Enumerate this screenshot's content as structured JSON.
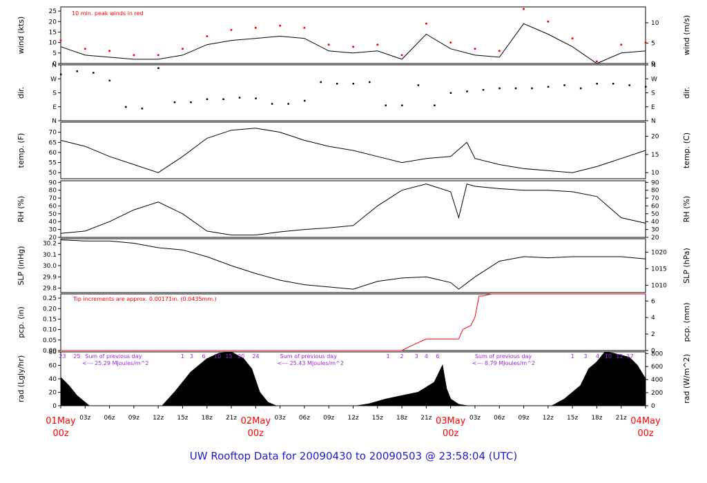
{
  "chart_data": [
    {
      "type": "line",
      "ylabel_left": "wind (kts)",
      "ylabel_right": "wind (m/s)",
      "ylim_left": [
        0,
        27
      ],
      "yticks_left": [
        "0",
        "5",
        "10",
        "15",
        "20",
        "25"
      ],
      "yticks_right": [
        "0",
        "5",
        "10"
      ],
      "annotation": "10 min. peak winds in red",
      "series": [
        {
          "color": "#000000",
          "x": [
            0,
            3,
            6,
            9,
            12,
            15,
            18,
            21,
            24,
            27,
            30,
            33,
            36,
            39,
            42,
            45,
            48,
            51,
            54,
            57,
            60,
            63,
            66,
            69,
            72
          ],
          "y": [
            8,
            4,
            3,
            2,
            2,
            4,
            9,
            11,
            12,
            13,
            12,
            6,
            5,
            6,
            2,
            14,
            7,
            4,
            3,
            19,
            14,
            8,
            0,
            5,
            6
          ]
        },
        {
          "color": "#ff0000",
          "x": [
            0,
            3,
            6,
            9,
            12,
            15,
            18,
            21,
            24,
            27,
            30,
            33,
            36,
            39,
            42,
            45,
            48,
            51,
            54,
            57,
            60,
            63,
            66,
            69,
            72
          ],
          "y": [
            11,
            7,
            6,
            4,
            4,
            7,
            13,
            16,
            17,
            18,
            17,
            9,
            8,
            9,
            4,
            19,
            10,
            7,
            6,
            26,
            20,
            12,
            1,
            9,
            10
          ]
        }
      ]
    },
    {
      "type": "scatter",
      "ylabel_left": "dir.",
      "ylabel_right": "dir.",
      "yticks_left": [
        "N",
        "E",
        "S",
        "W",
        "N"
      ],
      "yticks_right": [
        "N",
        "E",
        "S",
        "W",
        "N"
      ],
      "ylim": [
        0,
        360
      ],
      "x": [
        0,
        2,
        4,
        6,
        8,
        10,
        12,
        14,
        16,
        18,
        20,
        22,
        24,
        26,
        28,
        30,
        32,
        34,
        36,
        38,
        40,
        42,
        44,
        46,
        48,
        50,
        52,
        54,
        56,
        58,
        60,
        62,
        64,
        66,
        68,
        70,
        72
      ],
      "y": [
        300,
        320,
        310,
        260,
        90,
        80,
        340,
        120,
        120,
        140,
        140,
        150,
        145,
        110,
        110,
        130,
        250,
        240,
        240,
        250,
        100,
        100,
        230,
        100,
        180,
        190,
        200,
        210,
        210,
        210,
        220,
        230,
        210,
        240,
        240,
        230,
        220
      ]
    },
    {
      "type": "line",
      "ylabel_left": "temp. (F)",
      "ylabel_right": "temp. (C)",
      "ylim": [
        47,
        75
      ],
      "yticks_left": [
        "50",
        "55",
        "60",
        "65",
        "70"
      ],
      "yticks_right": [
        "10",
        "15",
        "20"
      ],
      "series": [
        {
          "color": "#000000",
          "x": [
            0,
            3,
            6,
            9,
            12,
            15,
            18,
            21,
            24,
            27,
            30,
            33,
            36,
            39,
            42,
            45,
            48,
            50,
            51,
            54,
            57,
            60,
            63,
            66,
            69,
            72
          ],
          "y": [
            66,
            63,
            58,
            54,
            50,
            58,
            67,
            71,
            72,
            70,
            66,
            63,
            61,
            58,
            55,
            57,
            58,
            65,
            57,
            54,
            52,
            51,
            50,
            53,
            57,
            61
          ]
        }
      ]
    },
    {
      "type": "line",
      "ylabel_left": "RH (%)",
      "ylabel_right": "RH (%)",
      "ylim": [
        20,
        92
      ],
      "yticks": [
        "20",
        "30",
        "40",
        "50",
        "60",
        "70",
        "80",
        "90"
      ],
      "series": [
        {
          "color": "#000000",
          "x": [
            0,
            3,
            6,
            9,
            12,
            15,
            18,
            21,
            24,
            27,
            30,
            33,
            36,
            39,
            42,
            45,
            48,
            49,
            50,
            51,
            54,
            57,
            60,
            63,
            66,
            69,
            72
          ],
          "y": [
            25,
            28,
            40,
            55,
            65,
            50,
            28,
            23,
            23,
            27,
            30,
            32,
            35,
            60,
            80,
            88,
            78,
            45,
            88,
            85,
            82,
            80,
            80,
            78,
            72,
            45,
            38
          ]
        }
      ]
    },
    {
      "type": "line",
      "ylabel_left": "SLP (inHg)",
      "ylabel_right": "SLP (hPa)",
      "ylim": [
        29.76,
        30.24
      ],
      "yticks_left": [
        "29.8",
        "29.9",
        "30.0",
        "30.1",
        "30.2"
      ],
      "yticks_right": [
        "1010",
        "1015",
        "1020"
      ],
      "series": [
        {
          "color": "#000000",
          "x": [
            0,
            3,
            6,
            9,
            12,
            15,
            18,
            21,
            24,
            27,
            30,
            33,
            36,
            39,
            42,
            45,
            48,
            49,
            51,
            54,
            57,
            60,
            63,
            66,
            69,
            72
          ],
          "y": [
            30.23,
            30.22,
            30.22,
            30.2,
            30.16,
            30.14,
            30.08,
            30.0,
            29.93,
            29.87,
            29.83,
            29.81,
            29.79,
            29.86,
            29.89,
            29.9,
            29.85,
            29.79,
            29.9,
            30.04,
            30.08,
            30.07,
            30.08,
            30.08,
            30.08,
            30.06
          ]
        }
      ]
    },
    {
      "type": "line",
      "ylabel_left": "pcp. (in)",
      "ylabel_right": "pcp. (mm)",
      "ylim": [
        0,
        0.27
      ],
      "yticks_left": [
        "0.00",
        "0.05",
        "0.10",
        "0.15",
        "0.20",
        "0.25"
      ],
      "yticks_right": [
        "0",
        "2",
        "4",
        "6"
      ],
      "annotation": "Tip increments are approx. 0.00171in. (0.0435mm.)",
      "series": [
        {
          "color": "#ff0000",
          "x": [
            0,
            42,
            43,
            45,
            49,
            49.5,
            50.5,
            51,
            51.5,
            52,
            53,
            72
          ],
          "y": [
            0,
            0,
            0.02,
            0.055,
            0.055,
            0.1,
            0.12,
            0.16,
            0.26,
            0.26,
            0.27,
            0.27
          ]
        }
      ]
    },
    {
      "type": "area",
      "ylabel_left": "rad (Lgly/hr)",
      "ylabel_right": "rad (W/m^2)",
      "ylim": [
        0,
        80
      ],
      "yticks_left": [
        "0",
        "20",
        "40",
        "60",
        "80"
      ],
      "yticks_right": [
        "0",
        "200",
        "400",
        "600",
        "800"
      ],
      "hour_labels": [
        {
          "x": 0.2,
          "text": "23"
        },
        {
          "x": 2,
          "text": "25"
        },
        {
          "x": 15,
          "text": "1"
        },
        {
          "x": 16.1,
          "text": "3"
        },
        {
          "x": 17.6,
          "text": "6"
        },
        {
          "x": 19.3,
          "text": "10"
        },
        {
          "x": 20.7,
          "text": "15"
        },
        {
          "x": 22.2,
          "text": "20"
        },
        {
          "x": 24,
          "text": "24"
        },
        {
          "x": 40.3,
          "text": "1"
        },
        {
          "x": 42,
          "text": "2"
        },
        {
          "x": 43.8,
          "text": "3"
        },
        {
          "x": 45,
          "text": "4"
        },
        {
          "x": 46.4,
          "text": "6"
        },
        {
          "x": 63,
          "text": "1"
        },
        {
          "x": 64.6,
          "text": "3"
        },
        {
          "x": 66.1,
          "text": "4"
        },
        {
          "x": 67.4,
          "text": "10"
        },
        {
          "x": 68.8,
          "text": "12"
        },
        {
          "x": 70.1,
          "text": "17"
        }
      ],
      "day_sums": [
        {
          "x": 3,
          "line1": "Sum of previous day",
          "line2": "<--- 25.29 MJoules/m^2"
        },
        {
          "x": 27,
          "line1": "Sum of previous day",
          "line2": "<--- 25.43 MJoules/m^2"
        },
        {
          "x": 51,
          "line1": "Sum of previous day",
          "line2": "<--- 8.79 MJoules/m^2"
        }
      ],
      "series": [
        {
          "color": "#000000",
          "x": [
            0,
            1,
            2,
            3,
            3.5,
            12.5,
            14,
            16,
            18,
            19.5,
            21,
            22.5,
            23.5,
            24.5,
            25.5,
            26.5,
            36.5,
            38,
            40,
            42,
            44,
            46,
            47,
            47.5,
            48,
            49,
            50,
            60.5,
            62,
            64,
            65,
            66,
            67,
            68,
            69,
            70,
            71,
            72
          ],
          "y": [
            42,
            30,
            15,
            5,
            0,
            0,
            20,
            50,
            70,
            78,
            80,
            70,
            55,
            20,
            5,
            0,
            0,
            3,
            10,
            15,
            20,
            35,
            60,
            25,
            10,
            2,
            0,
            0,
            10,
            30,
            55,
            65,
            80,
            78,
            75,
            72,
            60,
            40
          ]
        }
      ]
    }
  ],
  "x_axis": {
    "minor_ticks": [
      "03z",
      "06z",
      "09z",
      "12z",
      "15z",
      "18z",
      "21z"
    ],
    "major_days": [
      {
        "day": "01May",
        "hour": "00z"
      },
      {
        "day": "02May",
        "hour": "00z"
      },
      {
        "day": "03May",
        "hour": "00z"
      },
      {
        "day": "04May",
        "hour": "00z"
      }
    ]
  },
  "footer": "UW Rooftop Data for 20090430  to  20090503 @ 23:58:04  (UTC)",
  "colors": {
    "accent_red": "#ff0000",
    "title_blue": "#1a1ad6",
    "note_purple": "#a020f0"
  }
}
